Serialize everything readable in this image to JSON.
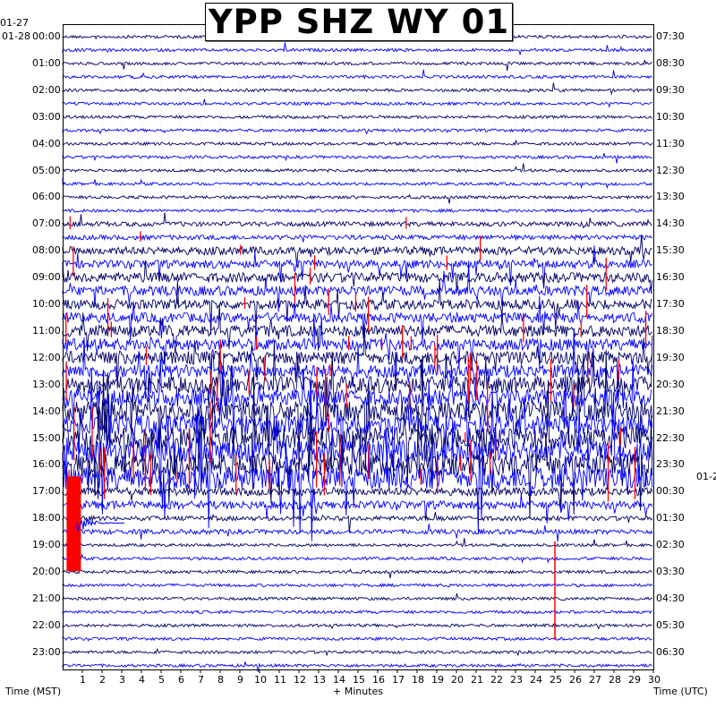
{
  "title": "YPP SHZ WY 01",
  "left_dates": [
    "01-27",
    "01-28"
  ],
  "right_date": "01-2",
  "left_axis_label": "Time (MST)",
  "right_axis_label": "Time (UTC)",
  "x_axis_label": "+ Minutes",
  "colors": {
    "dark": "#000066",
    "blue": "#0000ff",
    "event": "#ff0000",
    "grid": "#aaaaaa"
  },
  "chart_data": {
    "type": "helicorder",
    "x": {
      "label": "+ Minutes",
      "range": [
        0,
        30
      ],
      "ticks": [
        "1",
        "2",
        "3",
        "4",
        "5",
        "6",
        "7",
        "8",
        "9",
        "10",
        "11",
        "12",
        "13",
        "14",
        "15",
        "16",
        "17",
        "18",
        "19",
        "20",
        "21",
        "22",
        "23",
        "24",
        "25",
        "26",
        "27",
        "28",
        "29",
        "30"
      ]
    },
    "left_time_labels": [
      "00:00",
      "01:00",
      "02:00",
      "03:00",
      "04:00",
      "05:00",
      "06:00",
      "07:00",
      "08:00",
      "09:00",
      "10:00",
      "11:00",
      "12:00",
      "13:00",
      "14:00",
      "15:00",
      "16:00",
      "17:00",
      "18:00",
      "19:00",
      "20:00",
      "21:00",
      "22:00",
      "23:00"
    ],
    "right_time_labels": [
      "07:30",
      "08:30",
      "09:30",
      "10:30",
      "11:30",
      "12:30",
      "13:30",
      "14:30",
      "15:30",
      "16:30",
      "17:30",
      "18:30",
      "19:30",
      "20:30",
      "21:30",
      "22:30",
      "23:30",
      "00:30",
      "01:30",
      "02:30",
      "03:30",
      "04:30",
      "05:30",
      "06:30"
    ],
    "traces_per_hour": 2,
    "noise_level_by_hour": [
      1,
      1,
      1,
      1,
      1,
      1,
      1,
      2,
      4,
      5,
      5,
      6,
      7,
      9,
      11,
      12,
      12,
      4,
      2,
      1,
      1,
      1,
      1,
      1
    ],
    "large_events": [
      {
        "hour_row": 17,
        "minute": 0.2,
        "label": "large event (clipped, red)"
      },
      {
        "hour_row": 20,
        "minute": 25,
        "label": "spike"
      }
    ]
  }
}
